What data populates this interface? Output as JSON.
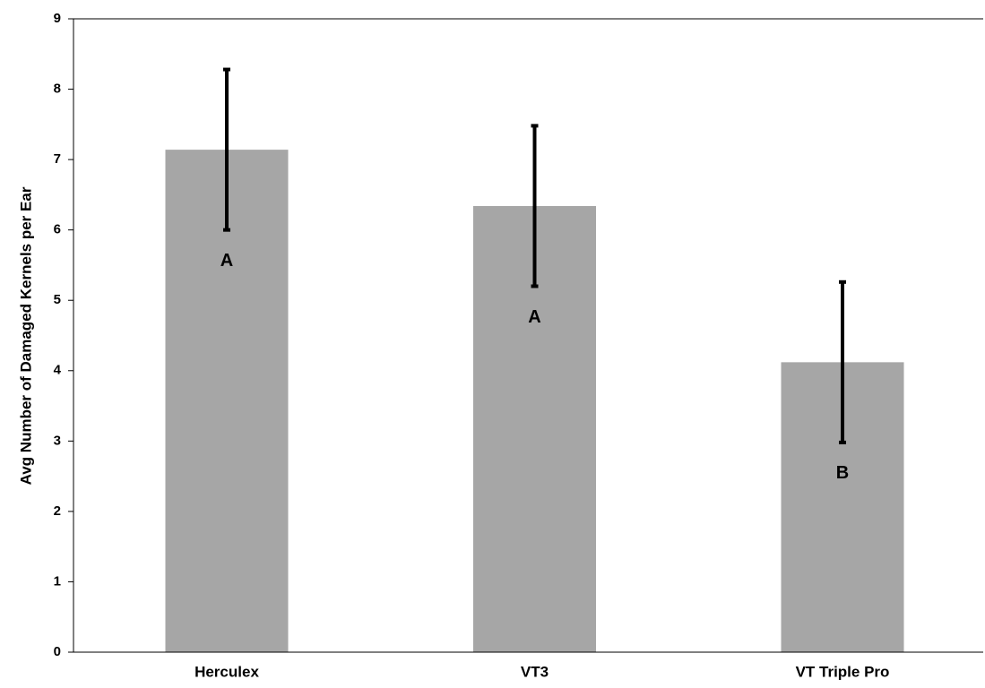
{
  "chart_data": {
    "type": "bar",
    "y_label": "Avg Number of Damaged Kernels per Ear",
    "categories": [
      "Herculex",
      "VT3",
      "VT Triple Pro"
    ],
    "values": [
      7.14,
      6.34,
      4.12
    ],
    "errors": [
      1.14,
      1.14,
      1.14
    ],
    "letters": [
      "A",
      "A",
      "B"
    ],
    "color": "#a6a6a6",
    "error_color": "#000000",
    "ylim": [
      0,
      9
    ],
    "yticks": [
      0,
      1,
      2,
      3,
      4,
      5,
      6,
      7,
      8,
      9
    ],
    "grid": false
  }
}
